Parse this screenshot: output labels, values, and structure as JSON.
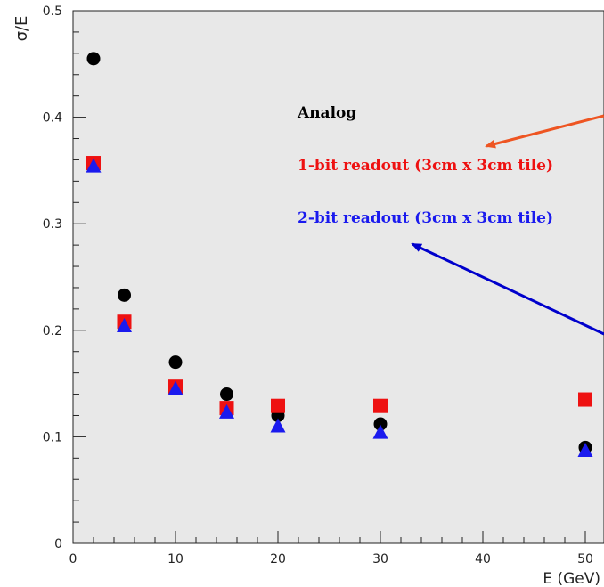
{
  "chart_data": {
    "type": "scatter",
    "xlabel": "E (GeV)",
    "ylabel": "σ/E",
    "xlim": [
      0,
      52
    ],
    "ylim": [
      0,
      0.5
    ],
    "x_ticks": [
      0,
      10,
      20,
      30,
      40,
      50
    ],
    "y_ticks": [
      0,
      0.1,
      0.2,
      0.3,
      0.4,
      0.5
    ],
    "y_tick_labels": [
      "0",
      "0.1",
      "0.2",
      "0.3",
      "0.4",
      "0.5"
    ],
    "grid": false,
    "background": "#e8e8e8",
    "series": [
      {
        "name": "Analog",
        "marker": "circle",
        "color": "#000000",
        "points": [
          {
            "x": 2,
            "y": 0.455
          },
          {
            "x": 5,
            "y": 0.233
          },
          {
            "x": 10,
            "y": 0.17
          },
          {
            "x": 15,
            "y": 0.14
          },
          {
            "x": 20,
            "y": 0.12
          },
          {
            "x": 30,
            "y": 0.112
          },
          {
            "x": 50,
            "y": 0.09
          }
        ]
      },
      {
        "name": "1-bit readout (3cm x 3cm tile)",
        "marker": "square",
        "color": "#ee1111",
        "points": [
          {
            "x": 2,
            "y": 0.357
          },
          {
            "x": 5,
            "y": 0.208
          },
          {
            "x": 10,
            "y": 0.147
          },
          {
            "x": 15,
            "y": 0.127
          },
          {
            "x": 20,
            "y": 0.129
          },
          {
            "x": 30,
            "y": 0.129
          },
          {
            "x": 50,
            "y": 0.135
          }
        ]
      },
      {
        "name": "2-bit readout (3cm x 3cm tile)",
        "marker": "triangle",
        "color": "#1a1aee",
        "points": [
          {
            "x": 2,
            "y": 0.354
          },
          {
            "x": 5,
            "y": 0.204
          },
          {
            "x": 10,
            "y": 0.145
          },
          {
            "x": 15,
            "y": 0.123
          },
          {
            "x": 20,
            "y": 0.11
          },
          {
            "x": 30,
            "y": 0.104
          },
          {
            "x": 50,
            "y": 0.087
          }
        ]
      }
    ],
    "legend": {
      "placement": "upper-right",
      "entries": [
        {
          "label": "Analog",
          "color": "#000000"
        },
        {
          "label": "1-bit readout (3cm x 3cm tile)",
          "color": "#ee1111"
        },
        {
          "label": "2-bit readout (3cm x 3cm tile)",
          "color": "#1a1aee"
        }
      ]
    },
    "annotations": [
      {
        "type": "arrow",
        "color": "#ee5522",
        "target": "1-bit readout (3cm x 3cm tile)"
      },
      {
        "type": "arrow",
        "color": "#0000cc",
        "target": "2-bit readout (3cm x 3cm tile)"
      }
    ]
  }
}
